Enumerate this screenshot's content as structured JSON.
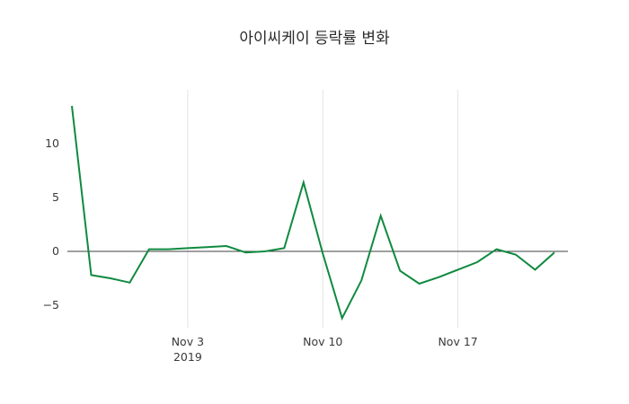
{
  "chart_data": {
    "type": "line",
    "title": "아이씨케이 등락률 변화",
    "xlabel": "",
    "ylabel": "",
    "ylim": [
      -7.08,
      15.0
    ],
    "grid": "vertical-only",
    "zero_line": true,
    "background_color": "#ffffff",
    "grid_color": "#e3e3e3",
    "zero_line_color": "#3f3f3f",
    "tick_color": "#3a3a3a",
    "x": [
      "Oct 28",
      "Oct 29",
      "Oct 30",
      "Oct 31",
      "Nov 1",
      "Nov 2",
      "Nov 3",
      "Nov 4",
      "Nov 5",
      "Nov 6",
      "Nov 7",
      "Nov 8",
      "Nov 9",
      "Nov 10",
      "Nov 11",
      "Nov 12",
      "Nov 13",
      "Nov 14",
      "Nov 15",
      "Nov 16",
      "Nov 17",
      "Nov 18",
      "Nov 19",
      "Nov 20",
      "Nov 21",
      "Nov 22"
    ],
    "series": [
      {
        "name": "등락률",
        "color": "#0f8a40",
        "values": [
          13.5,
          -2.2,
          -2.5,
          -2.9,
          0.2,
          0.2,
          0.3,
          0.4,
          0.5,
          -0.1,
          0.0,
          0.3,
          6.4,
          -0.2,
          -6.2,
          -2.7,
          3.3,
          -1.8,
          -3.0,
          -2.4,
          -1.7,
          -1.0,
          0.2,
          -0.3,
          -1.7,
          -0.1
        ]
      }
    ],
    "xticks": [
      {
        "label": "Nov 3",
        "sublabel": "2019",
        "index": 6
      },
      {
        "label": "Nov 10",
        "sublabel": "",
        "index": 13
      },
      {
        "label": "Nov 17",
        "sublabel": "",
        "index": 20
      }
    ],
    "yticks": [
      {
        "label": "10",
        "value": 10
      },
      {
        "label": "5",
        "value": 5
      },
      {
        "label": "0",
        "value": 0
      },
      {
        "label": "−5",
        "value": -5
      }
    ]
  }
}
